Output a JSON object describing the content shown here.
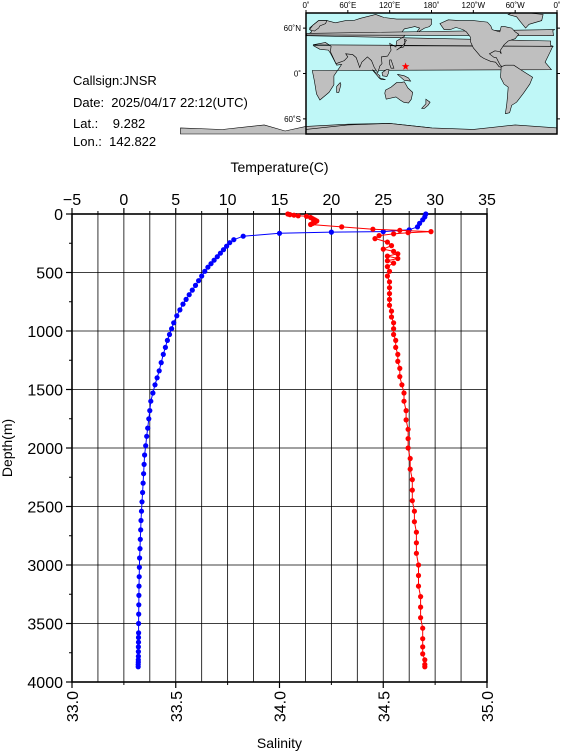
{
  "station": {
    "callsign_line": "Callsign:JNSR",
    "date_line": "Date:  2025/04/17 22:12(UTC)",
    "lat_line": "Lat.:    9.282",
    "lon_line": "Lon.:  142.822"
  },
  "map": {
    "lon_labels": [
      "0˚",
      "60˚E",
      "120˚E",
      "180˚",
      "120˚W",
      "60˚W",
      "0˚"
    ],
    "lat_labels": [
      "60˚N",
      "0˚",
      "60˚S"
    ],
    "marker_lon": 142.822,
    "marker_lat": 9.282,
    "colors": {
      "ocean": "#bff7f7",
      "land": "#bfbfbf",
      "marker": "#ff0000"
    }
  },
  "chart_data": {
    "type": "line",
    "ylabel": "Depth(m)",
    "ylim": [
      4000,
      0
    ],
    "yticks": [
      "0",
      "500",
      "1000",
      "1500",
      "2000",
      "2500",
      "3000",
      "3500",
      "4000"
    ],
    "top_axis": {
      "label": "Temperature(C)",
      "lim": [
        -5,
        35
      ],
      "ticks": [
        "−5",
        "0",
        "5",
        "10",
        "15",
        "20",
        "25",
        "30",
        "35"
      ]
    },
    "bottom_axis": {
      "label": "Salinity",
      "lim": [
        33.0,
        35.0
      ],
      "ticks": [
        "33.0",
        "33.5",
        "34.0",
        "34.5",
        "35.0"
      ]
    },
    "grid": true,
    "series": [
      {
        "axis": "top",
        "color": "#0000ff",
        "x": [
          29.1,
          29.0,
          28.8,
          28.5,
          28.3,
          27.5,
          25.0,
          20.0,
          15.0,
          11.5,
          10.6,
          10.2,
          9.9,
          9.6,
          9.3,
          9.0,
          8.7,
          8.4,
          8.1,
          7.8,
          7.5,
          7.2,
          6.9,
          6.6,
          6.3,
          6.0,
          5.7,
          5.4,
          5.1,
          4.8,
          4.6,
          4.4,
          4.2,
          4.0,
          3.8,
          3.6,
          3.4,
          3.2,
          3.0,
          2.8,
          2.6,
          2.5,
          2.4,
          2.3,
          2.2,
          2.1,
          2.0,
          1.95,
          1.9,
          1.85,
          1.8,
          1.75,
          1.7,
          1.65,
          1.62,
          1.58,
          1.55,
          1.52,
          1.5,
          1.48,
          1.46,
          1.45,
          1.44,
          1.43,
          1.42,
          1.42,
          1.41,
          1.41,
          1.4,
          1.4,
          1.4,
          1.39,
          1.39,
          1.38,
          1.38
        ],
        "y": [
          0,
          25,
          50,
          80,
          110,
          135,
          150,
          155,
          165,
          190,
          220,
          245,
          275,
          305,
          335,
          365,
          395,
          425,
          455,
          490,
          530,
          570,
          610,
          650,
          690,
          730,
          770,
          820,
          870,
          930,
          980,
          1030,
          1080,
          1140,
          1200,
          1270,
          1340,
          1400,
          1460,
          1530,
          1600,
          1680,
          1750,
          1830,
          1900,
          1980,
          2060,
          2140,
          2220,
          2300,
          2380,
          2460,
          2540,
          2620,
          2700,
          2780,
          2860,
          2940,
          3020,
          3100,
          3180,
          3260,
          3340,
          3420,
          3500,
          3580,
          3620,
          3660,
          3700,
          3740,
          3780,
          3810,
          3830,
          3850,
          3870
        ]
      },
      {
        "axis": "bottom",
        "color": "#ff0000",
        "x": [
          34.04,
          34.05,
          34.07,
          34.09,
          34.13,
          34.15,
          34.16,
          34.17,
          34.18,
          34.17,
          34.16,
          34.15,
          34.3,
          34.45,
          34.58,
          34.73,
          34.62,
          34.55,
          34.48,
          34.46,
          34.52,
          34.54,
          34.5,
          34.55,
          34.57,
          34.52,
          34.57,
          34.52,
          34.55,
          34.52,
          34.53,
          34.52,
          34.53,
          34.53,
          34.53,
          34.53,
          34.53,
          34.54,
          34.54,
          34.55,
          34.55,
          34.55,
          34.56,
          34.56,
          34.57,
          34.57,
          34.58,
          34.58,
          34.59,
          34.6,
          34.6,
          34.61,
          34.61,
          34.62,
          34.62,
          34.62,
          34.63,
          34.63,
          34.64,
          34.64,
          34.64,
          34.65,
          34.65,
          34.66,
          34.66,
          34.66,
          34.67,
          34.67,
          34.67,
          34.68,
          34.68,
          34.68,
          34.69,
          34.69,
          34.69,
          34.69,
          34.7,
          34.7,
          34.7
        ],
        "y": [
          0,
          5,
          10,
          15,
          20,
          30,
          40,
          50,
          60,
          70,
          80,
          90,
          110,
          130,
          140,
          150,
          160,
          170,
          185,
          210,
          240,
          270,
          300,
          320,
          340,
          360,
          380,
          400,
          420,
          450,
          490,
          530,
          580,
          630,
          680,
          730,
          780,
          830,
          880,
          930,
          980,
          1030,
          1080,
          1140,
          1200,
          1260,
          1320,
          1390,
          1460,
          1530,
          1600,
          1680,
          1760,
          1840,
          1920,
          2000,
          2090,
          2180,
          2270,
          2360,
          2450,
          2540,
          2630,
          2720,
          2810,
          2900,
          3000,
          3090,
          3180,
          3270,
          3360,
          3450,
          3540,
          3630,
          3700,
          3760,
          3810,
          3850,
          3870
        ]
      }
    ]
  }
}
